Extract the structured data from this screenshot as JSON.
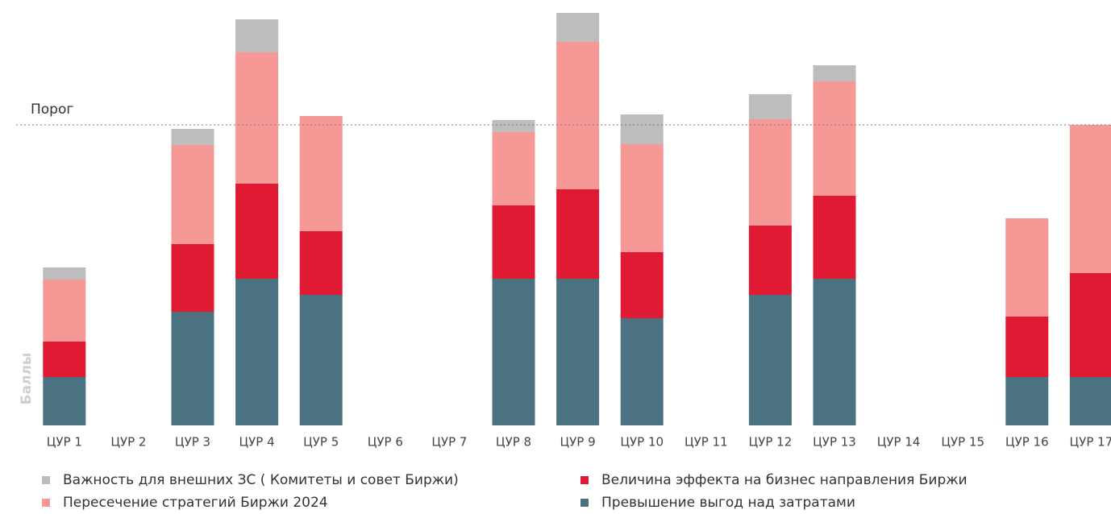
{
  "chart_data": {
    "type": "stacked-bar",
    "y_label": "Баллы",
    "categories": [
      "ЦУР 1",
      "ЦУР 2",
      "ЦУР 3",
      "ЦУР 4",
      "ЦУР 5",
      "ЦУР 6",
      "ЦУР 7",
      "ЦУР 8",
      "ЦУР 9",
      "ЦУР 10",
      "ЦУР 11",
      "ЦУР 12",
      "ЦУР 13",
      "ЦУР 14",
      "ЦУР 15",
      "ЦУР 16",
      "ЦУР 17"
    ],
    "series": [
      {
        "name": "Превышение выгод над затратами",
        "color": "#4a7280",
        "values": [
          6,
          0,
          14.1,
          18.2,
          16.2,
          0,
          0,
          18.2,
          18.2,
          13.3,
          0,
          16.2,
          18.2,
          0,
          0,
          6,
          6
        ]
      },
      {
        "name": "Величина эффекта на бизнес направления Биржи",
        "color": "#e01a32",
        "values": [
          4.4,
          0,
          8.4,
          11.8,
          7.9,
          0,
          0,
          9.1,
          11.1,
          8.2,
          0,
          8.6,
          10.3,
          0,
          0,
          7.5,
          12.9
        ]
      },
      {
        "name": "Пересечение стратегий Биржи 2024",
        "color": "#f59896",
        "values": [
          7.7,
          0,
          12.3,
          16.3,
          14.3,
          0,
          0,
          9.1,
          18.3,
          13.4,
          0,
          13.2,
          14.2,
          0,
          0,
          12.2,
          18.4
        ]
      },
      {
        "name": "Важность для внешних ЗС ( Комитеты и совет Биржи)",
        "color": "#bdbdbd",
        "values": [
          1.5,
          0,
          2,
          4.1,
          0,
          0,
          0,
          1.5,
          3.6,
          3.7,
          0,
          3.1,
          2,
          0,
          0,
          0,
          0
        ]
      }
    ],
    "threshold": {
      "label": "Порог",
      "value": 37.3
    },
    "ylim": [
      0,
      52
    ]
  }
}
